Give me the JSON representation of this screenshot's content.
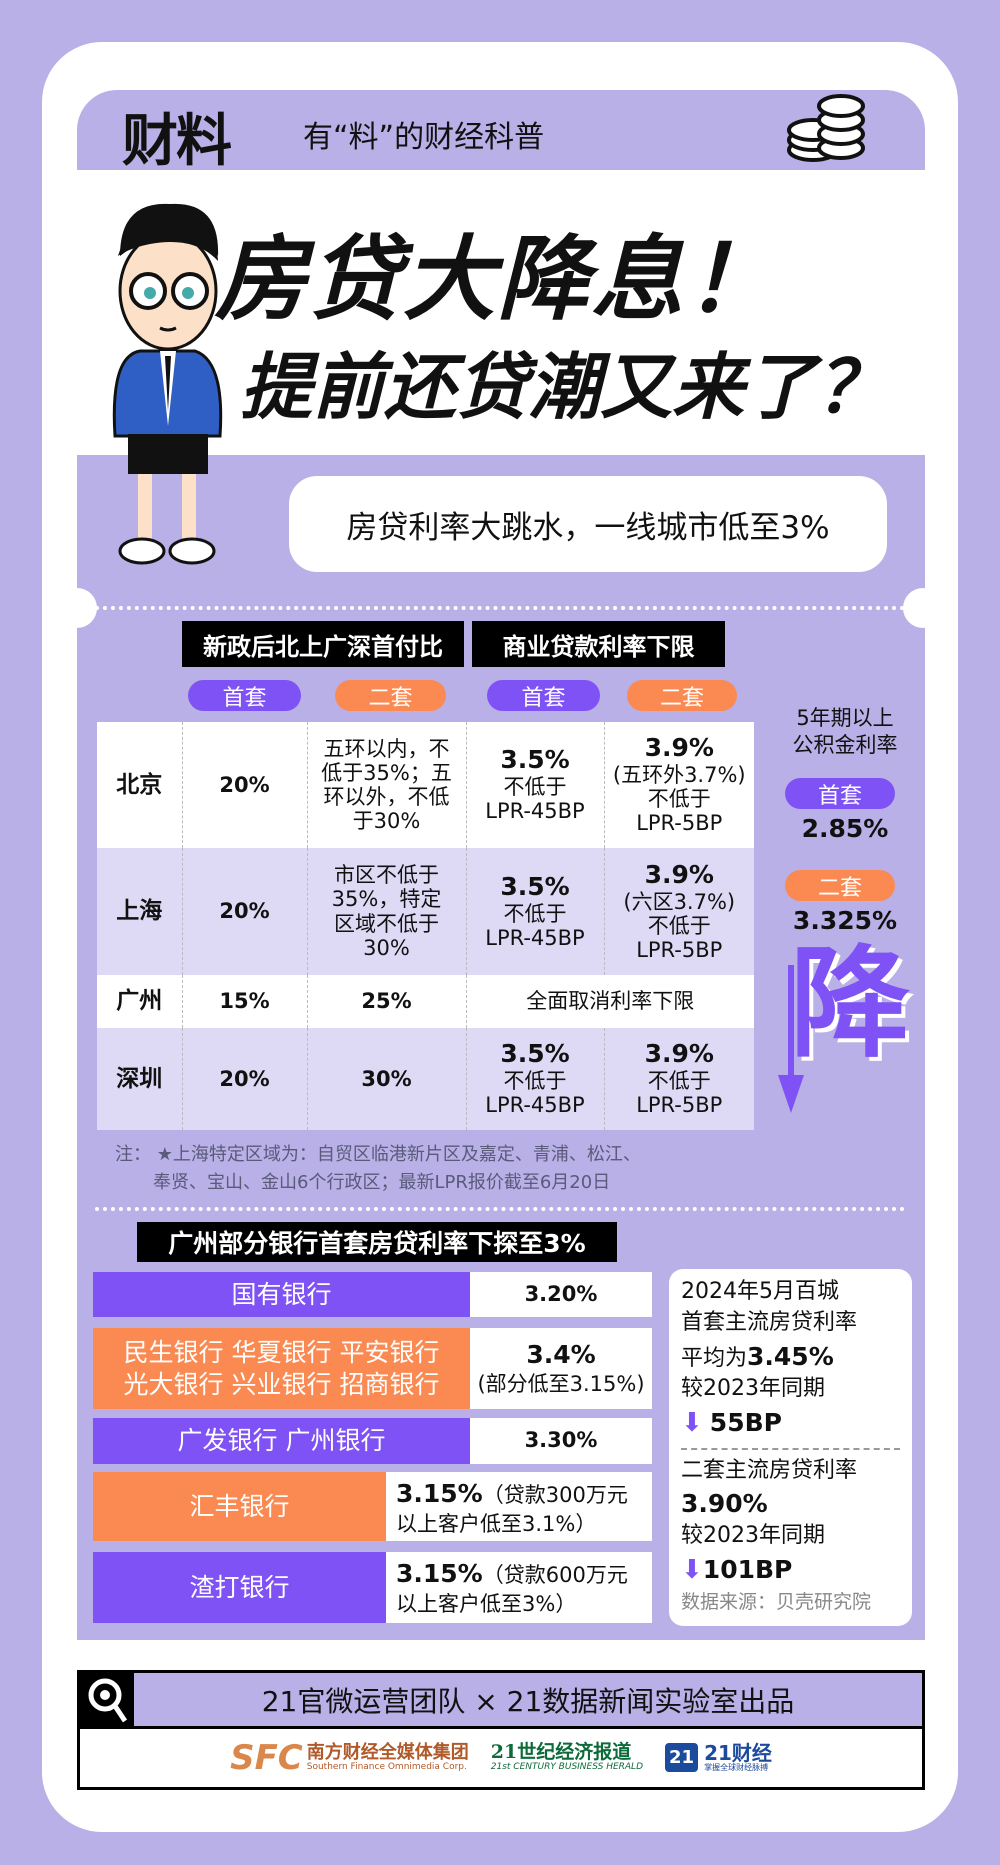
{
  "header": {
    "brand": "财料",
    "slogan": "有“料”的财经科普",
    "icon": "coins-icon"
  },
  "title": {
    "line1": "房贷大降息！",
    "line2": "提前还贷潮又来了？"
  },
  "bubble": "房贷利率大跳水，一线城市低至3%",
  "table": {
    "group_headers": [
      "新政后北上广深首付比",
      "商业贷款利率下限"
    ],
    "pills": [
      "首套",
      "二套",
      "首套",
      "二套"
    ],
    "rows": [
      {
        "city": "北京",
        "dp1": "20%",
        "dp2": "五环以内，不低于35%；五环以外，不低于30%",
        "r1": "3.5%",
        "r1_sub": "不低于",
        "r1_lpr": "LPR-45BP",
        "r2": "3.9%",
        "r2_note": "(五环外3.7%)",
        "r2_sub": "不低于",
        "r2_lpr": "LPR-5BP"
      },
      {
        "city": "上海",
        "dp1": "20%",
        "dp2": "市区不低于35%，特定区域不低于30%",
        "r1": "3.5%",
        "r1_sub": "不低于",
        "r1_lpr": "LPR-45BP",
        "r2": "3.9%",
        "r2_note": "(六区3.7%)",
        "r2_sub": "不低于",
        "r2_lpr": "LPR-5BP"
      },
      {
        "city": "广州",
        "dp1": "15%",
        "dp2": "25%",
        "merged": "全面取消利率下限"
      },
      {
        "city": "深圳",
        "dp1": "20%",
        "dp2": "30%",
        "r1": "3.5%",
        "r1_sub": "不低于",
        "r1_lpr": "LPR-45BP",
        "r2": "3.9%",
        "r2_sub": "不低于",
        "r2_lpr": "LPR-5BP"
      }
    ]
  },
  "fund": {
    "title1": "5年期以上",
    "title2": "公积金利率",
    "first_label": "首套",
    "first_value": "2.85%",
    "second_label": "二套",
    "second_value": "3.325%",
    "big_char": "降"
  },
  "note": {
    "line1": "注：  ★上海特定区域为：自贸区临港新片区及嘉定、青浦、松江、",
    "line2": "奉贤、宝山、金山6个行政区；最新LPR报价截至6月20日"
  },
  "banks": {
    "title": "广州部分银行首套房贷利率下探至3%",
    "rows": [
      {
        "name": "国有银行",
        "value": "3.20%",
        "color": "#7f52f5"
      },
      {
        "name": "民生银行  华夏银行  平安银行\n光大银行  兴业银行  招商银行",
        "value": "3.4%",
        "sub": "(部分低至3.15%)",
        "color": "#fa8a52"
      },
      {
        "name": "广发银行  广州银行",
        "value": "3.30%",
        "color": "#7f52f5"
      },
      {
        "name": "汇丰银行",
        "value": "3.15%",
        "sub": "（贷款300万元以上客户低至3.1%）",
        "color": "#fa8a52"
      },
      {
        "name": "渣打银行",
        "value": "3.15%",
        "sub": "（贷款600万元以上客户低至3%）",
        "color": "#7f52f5"
      }
    ]
  },
  "summary": {
    "l1": "2024年5月百城",
    "l2": "首套主流房贷利率",
    "l3a": "平均为",
    "l3b": "3.45%",
    "l4": "较2023年同期",
    "d1": "55BP",
    "l5": "二套主流房贷利率",
    "l6": "3.90%",
    "l7": "较2023年同期",
    "d2": "101BP",
    "source": "数据来源：贝壳研究院"
  },
  "footer": {
    "credit": "21官微运营团队 × 21数据新闻实验室出品",
    "logos": [
      "SFC",
      "南方财经全媒体集团",
      "Southern Finance Omnimedia Corp.",
      "21世纪经济报道",
      "21st CENTURY BUSINESS HERALD",
      "21",
      "21财经",
      "掌握全球财经脉搏"
    ]
  },
  "colors": {
    "purple": "#7f52f5",
    "orange": "#fa8a52",
    "lavender": "#b8b0e6"
  }
}
